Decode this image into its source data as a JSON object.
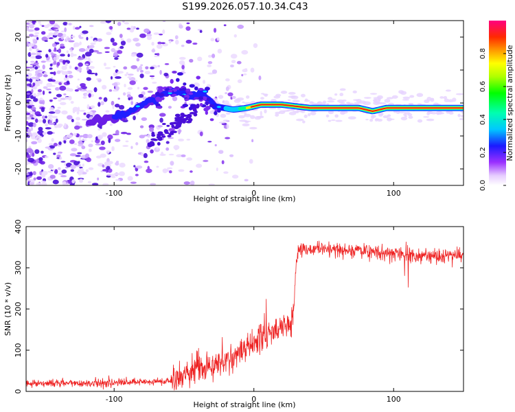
{
  "title": "S199.2026.057.10.34.C43",
  "chart_data": [
    {
      "type": "heatmap",
      "xlabel": "Height of straight line (km)",
      "ylabel": "Frequency (Hz)",
      "xlim": [
        -163,
        150
      ],
      "ylim": [
        -25,
        25
      ],
      "xticks": [
        -100,
        0,
        100
      ],
      "yticks": [
        -20,
        -10,
        0,
        10,
        20
      ],
      "colorbar": {
        "label": "Normalized spectral amplitude",
        "ticks": [
          0.0,
          0.2,
          0.4,
          0.6,
          0.8
        ],
        "tick_labels": [
          "0.0",
          "0.2",
          "0.4",
          "0.6",
          "0.8"
        ],
        "range": [
          0,
          1
        ]
      },
      "ridge": {
        "description_points_x": [
          -113,
          -95,
          -80,
          -65,
          -55,
          -45,
          -35,
          -28,
          -15,
          -5,
          5,
          20,
          40,
          60,
          75,
          85,
          95,
          110,
          150
        ],
        "description_points_y": [
          -5,
          -4,
          -1,
          3,
          4,
          2,
          2,
          -1,
          -2,
          -1.5,
          -0.5,
          -0.5,
          -1.5,
          -1.5,
          -1.5,
          -2.5,
          -1.5,
          -1.5,
          -1.5
        ]
      }
    },
    {
      "type": "line",
      "xlabel": "Height of straight line (km)",
      "ylabel": "SNR (10 * v/v)",
      "xlim": [
        -163,
        150
      ],
      "ylim": [
        0,
        400
      ],
      "xticks": [
        -100,
        0,
        100
      ],
      "yticks": [
        0,
        100,
        200,
        300,
        400
      ],
      "series": [
        {
          "name": "SNR",
          "color": "#ee2222",
          "trend_x": [
            -163,
            -120,
            -80,
            -60,
            -50,
            -40,
            -30,
            -20,
            -10,
            0,
            10,
            20,
            28,
            30,
            32,
            40,
            60,
            80,
            100,
            110,
            120,
            150
          ],
          "trend_y": [
            20,
            20,
            22,
            25,
            40,
            55,
            60,
            75,
            95,
            120,
            140,
            155,
            165,
            300,
            345,
            345,
            345,
            340,
            335,
            330,
            330,
            330
          ]
        }
      ]
    }
  ],
  "colors": {
    "snr_line": "#ee2222",
    "ridge_core": "#e11a1a",
    "scatter": "#8a3cf0"
  }
}
